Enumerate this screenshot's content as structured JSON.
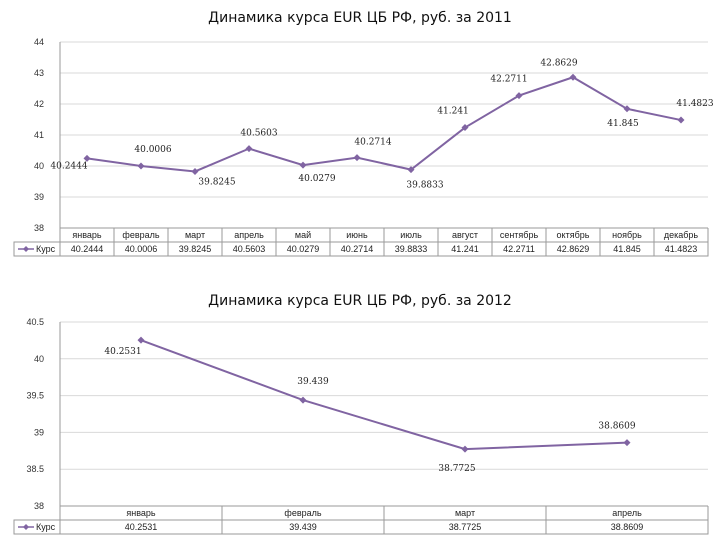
{
  "colors": {
    "series": "#8064a2"
  },
  "chart_data": [
    {
      "type": "line",
      "title": "Динамика курса EUR ЦБ РФ, руб. за 2011",
      "categories": [
        "январь",
        "февраль",
        "март",
        "апрель",
        "май",
        "июнь",
        "июль",
        "август",
        "сентябрь",
        "октябрь",
        "ноябрь",
        "декабрь"
      ],
      "series": [
        {
          "name": "Курс",
          "values": [
            40.2444,
            40.0006,
            39.8245,
            40.5603,
            40.0279,
            40.2714,
            39.8833,
            41.241,
            42.2711,
            42.8629,
            41.845,
            41.4823
          ],
          "labels": [
            "40.2444",
            "40.0006",
            "39.8245",
            "40.5603",
            "40.0279",
            "40.2714",
            "39.8833",
            "41.241",
            "42.2711",
            "42.8629",
            "41.845",
            "41.4823"
          ]
        }
      ],
      "yticks": [
        "44",
        "43",
        "42",
        "41",
        "40",
        "39",
        "38"
      ],
      "ylim": [
        38,
        44
      ],
      "data_table": true
    },
    {
      "type": "line",
      "title": "Динамика курса EUR ЦБ РФ, руб. за 2012",
      "categories": [
        "январь",
        "февраль",
        "март",
        "апрель"
      ],
      "series": [
        {
          "name": "Курс",
          "values": [
            40.2531,
            39.439,
            38.7725,
            38.8609
          ],
          "labels": [
            "40.2531",
            "39.439",
            "38.7725",
            "38.8609"
          ]
        }
      ],
      "yticks": [
        "40.5",
        "40",
        "39.5",
        "39",
        "38.5",
        "38"
      ],
      "ylim": [
        38,
        40.5
      ],
      "data_table": true
    }
  ]
}
